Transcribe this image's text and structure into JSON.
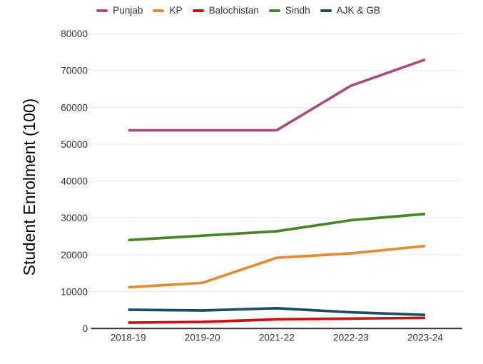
{
  "chart_data": {
    "type": "line",
    "title": "",
    "xlabel": "",
    "ylabel": "Student Enrolment (100)",
    "categories": [
      "2018-19",
      "2019-20",
      "2021-22",
      "2022-23",
      "2023-24"
    ],
    "series": [
      {
        "name": "Punjab",
        "color": "#a84e78",
        "values": [
          53800,
          53800,
          53800,
          65900,
          73000
        ]
      },
      {
        "name": "KP",
        "color": "#e28d33",
        "values": [
          11200,
          12400,
          19200,
          20400,
          22400
        ]
      },
      {
        "name": "Balochistan",
        "color": "#d01010",
        "values": [
          1600,
          1800,
          2500,
          2700,
          2900
        ]
      },
      {
        "name": "Sindh",
        "color": "#478527",
        "values": [
          24000,
          25200,
          26400,
          29400,
          31100
        ]
      },
      {
        "name": "AJK & GB",
        "color": "#1a4d63",
        "values": [
          5100,
          4900,
          5500,
          4400,
          3700
        ]
      }
    ],
    "ylim": [
      0,
      80000
    ],
    "yticks": [
      "0",
      "10000",
      "20000",
      "30000",
      "40000",
      "50000",
      "60000",
      "70000",
      "80000"
    ],
    "legend_position": "top",
    "grid": "horizontal",
    "gridline_color": "#e6e6e6",
    "axis_line_color": "#333333",
    "tick_label_color": "#333333"
  }
}
